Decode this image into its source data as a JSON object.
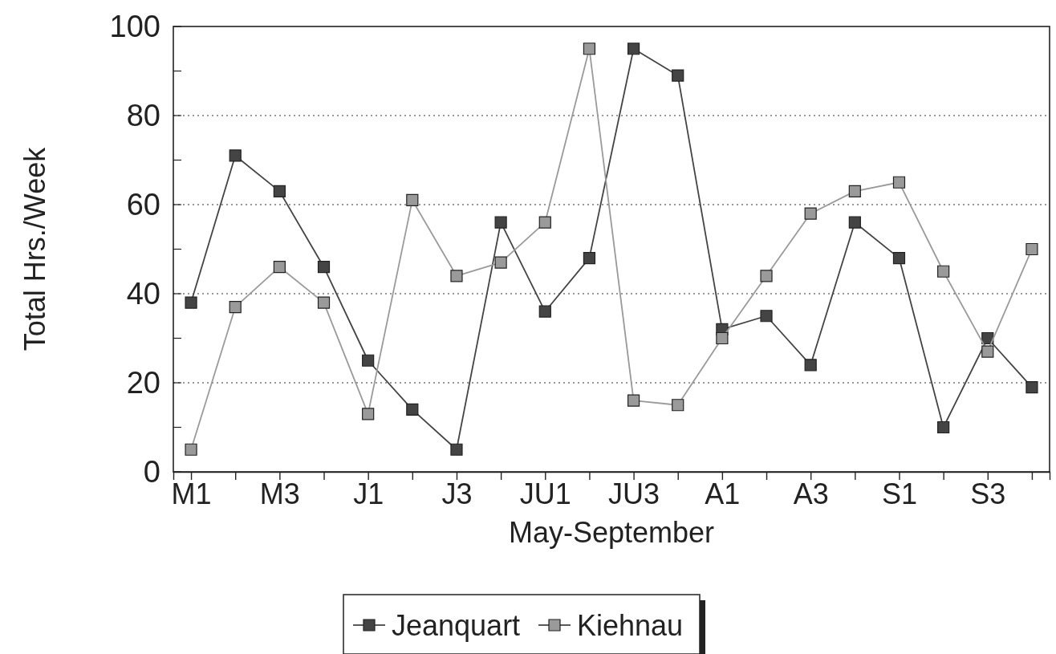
{
  "chart_data": {
    "type": "line",
    "xlabel": "May-September",
    "ylabel": "Total Hrs./Week",
    "categories": [
      "M1",
      null,
      "M3",
      null,
      "J1",
      null,
      "J3",
      null,
      "JU1",
      null,
      "JU3",
      null,
      "A1",
      null,
      "A3",
      null,
      "S1",
      null,
      "S3",
      null
    ],
    "series": [
      {
        "name": "Jeanquart",
        "color": "#444444",
        "values": [
          38,
          71,
          63,
          46,
          25,
          14,
          5,
          56,
          36,
          48,
          95,
          89,
          32,
          35,
          24,
          56,
          48,
          10,
          30,
          19
        ]
      },
      {
        "name": "Kiehnau",
        "color": "#9a9a9a",
        "values": [
          5,
          37,
          46,
          38,
          13,
          61,
          44,
          47,
          56,
          95,
          16,
          15,
          30,
          44,
          58,
          63,
          65,
          45,
          27,
          50
        ]
      }
    ],
    "ylim": [
      0,
      100
    ],
    "yticks": [
      0,
      {
        "value": 10,
        "label": null
      },
      20,
      {
        "value": 30,
        "label": null
      },
      40,
      {
        "value": 50,
        "label": null
      },
      60,
      {
        "value": 70,
        "label": null
      },
      80,
      {
        "value": 90,
        "label": null
      },
      100
    ],
    "grid": "y",
    "legend": "bottom",
    "marker": "square",
    "line_style": "solid"
  }
}
